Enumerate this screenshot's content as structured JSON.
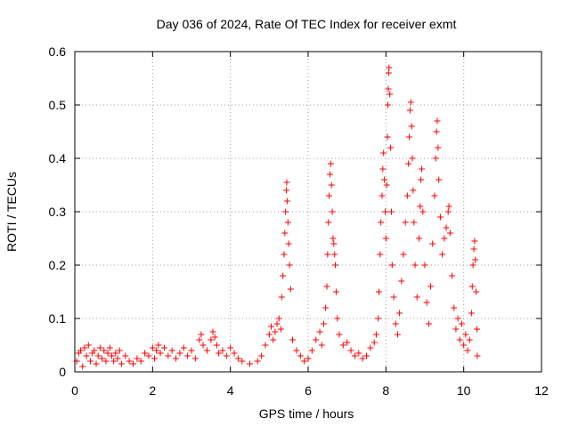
{
  "chart_data": {
    "type": "scatter",
    "title": "Day 036 of 2024, Rate Of TEC Index for receiver exmt",
    "xlabel": "GPS time / hours",
    "ylabel": "ROTI / TECUs",
    "xlim": [
      0,
      12
    ],
    "ylim": [
      0,
      0.6
    ],
    "xticks": [
      0,
      2,
      4,
      6,
      8,
      10,
      12
    ],
    "xtick_labels": [
      "0",
      "2",
      "4",
      "6",
      "8",
      "10",
      "12"
    ],
    "yticks": [
      0,
      0.1,
      0.2,
      0.3,
      0.4,
      0.5,
      0.6
    ],
    "ytick_labels": [
      "0",
      "0.1",
      "0.2",
      "0.3",
      "0.4",
      "0.5",
      "0.6"
    ],
    "grid": true,
    "marker": "+",
    "series_color": "#ff0000",
    "series": [
      {
        "name": "ROTI",
        "points": [
          [
            0.05,
            0.02
          ],
          [
            0.1,
            0.035
          ],
          [
            0.15,
            0.04
          ],
          [
            0.2,
            0.01
          ],
          [
            0.25,
            0.045
          ],
          [
            0.3,
            0.03
          ],
          [
            0.35,
            0.05
          ],
          [
            0.4,
            0.02
          ],
          [
            0.45,
            0.035
          ],
          [
            0.5,
            0.04
          ],
          [
            0.55,
            0.015
          ],
          [
            0.6,
            0.03
          ],
          [
            0.65,
            0.045
          ],
          [
            0.7,
            0.025
          ],
          [
            0.75,
            0.04
          ],
          [
            0.8,
            0.02
          ],
          [
            0.85,
            0.035
          ],
          [
            0.9,
            0.045
          ],
          [
            0.95,
            0.03
          ],
          [
            1.0,
            0.02
          ],
          [
            1.05,
            0.035
          ],
          [
            1.1,
            0.025
          ],
          [
            1.15,
            0.04
          ],
          [
            1.2,
            0.015
          ],
          [
            1.3,
            0.03
          ],
          [
            1.4,
            0.02
          ],
          [
            1.5,
            0.015
          ],
          [
            1.6,
            0.025
          ],
          [
            1.7,
            0.02
          ],
          [
            1.8,
            0.035
          ],
          [
            1.9,
            0.03
          ],
          [
            2.0,
            0.045
          ],
          [
            2.05,
            0.025
          ],
          [
            2.1,
            0.04
          ],
          [
            2.15,
            0.05
          ],
          [
            2.2,
            0.035
          ],
          [
            2.3,
            0.045
          ],
          [
            2.4,
            0.03
          ],
          [
            2.5,
            0.04
          ],
          [
            2.6,
            0.025
          ],
          [
            2.7,
            0.035
          ],
          [
            2.8,
            0.045
          ],
          [
            2.9,
            0.03
          ],
          [
            3.0,
            0.04
          ],
          [
            3.1,
            0.025
          ],
          [
            3.2,
            0.06
          ],
          [
            3.25,
            0.07
          ],
          [
            3.3,
            0.05
          ],
          [
            3.4,
            0.04
          ],
          [
            3.5,
            0.06
          ],
          [
            3.55,
            0.075
          ],
          [
            3.6,
            0.065
          ],
          [
            3.65,
            0.05
          ],
          [
            3.7,
            0.035
          ],
          [
            3.8,
            0.04
          ],
          [
            3.9,
            0.03
          ],
          [
            4.0,
            0.045
          ],
          [
            4.1,
            0.035
          ],
          [
            4.2,
            0.025
          ],
          [
            4.3,
            0.02
          ],
          [
            4.5,
            0.015
          ],
          [
            4.7,
            0.02
          ],
          [
            4.8,
            0.03
          ],
          [
            4.9,
            0.05
          ],
          [
            5.0,
            0.07
          ],
          [
            5.05,
            0.085
          ],
          [
            5.1,
            0.06
          ],
          [
            5.15,
            0.075
          ],
          [
            5.2,
            0.09
          ],
          [
            5.25,
            0.1
          ],
          [
            5.3,
            0.08
          ],
          [
            5.32,
            0.14
          ],
          [
            5.35,
            0.18
          ],
          [
            5.38,
            0.22
          ],
          [
            5.4,
            0.26
          ],
          [
            5.42,
            0.3
          ],
          [
            5.44,
            0.34
          ],
          [
            5.45,
            0.355
          ],
          [
            5.46,
            0.32
          ],
          [
            5.48,
            0.28
          ],
          [
            5.5,
            0.24
          ],
          [
            5.52,
            0.2
          ],
          [
            5.55,
            0.155
          ],
          [
            5.6,
            0.06
          ],
          [
            5.7,
            0.04
          ],
          [
            5.8,
            0.03
          ],
          [
            5.9,
            0.02
          ],
          [
            6.0,
            0.025
          ],
          [
            6.1,
            0.04
          ],
          [
            6.2,
            0.06
          ],
          [
            6.3,
            0.075
          ],
          [
            6.35,
            0.05
          ],
          [
            6.4,
            0.09
          ],
          [
            6.45,
            0.12
          ],
          [
            6.48,
            0.16
          ],
          [
            6.5,
            0.22
          ],
          [
            6.52,
            0.28
          ],
          [
            6.54,
            0.33
          ],
          [
            6.56,
            0.37
          ],
          [
            6.58,
            0.39
          ],
          [
            6.6,
            0.35
          ],
          [
            6.62,
            0.3
          ],
          [
            6.64,
            0.25
          ],
          [
            6.66,
            0.24
          ],
          [
            6.68,
            0.22
          ],
          [
            6.7,
            0.2
          ],
          [
            6.72,
            0.15
          ],
          [
            6.75,
            0.1
          ],
          [
            6.8,
            0.07
          ],
          [
            6.9,
            0.05
          ],
          [
            7.0,
            0.055
          ],
          [
            7.1,
            0.04
          ],
          [
            7.2,
            0.03
          ],
          [
            7.3,
            0.035
          ],
          [
            7.4,
            0.025
          ],
          [
            7.5,
            0.03
          ],
          [
            7.6,
            0.045
          ],
          [
            7.7,
            0.055
          ],
          [
            7.75,
            0.07
          ],
          [
            7.8,
            0.1
          ],
          [
            7.82,
            0.15
          ],
          [
            7.85,
            0.22
          ],
          [
            7.87,
            0.28
          ],
          [
            7.9,
            0.33
          ],
          [
            7.92,
            0.38
          ],
          [
            7.94,
            0.41
          ],
          [
            7.96,
            0.36
          ],
          [
            7.98,
            0.3
          ],
          [
            8.0,
            0.25
          ],
          [
            8.02,
            0.35
          ],
          [
            8.04,
            0.44
          ],
          [
            8.05,
            0.5
          ],
          [
            8.06,
            0.53
          ],
          [
            8.07,
            0.56
          ],
          [
            8.08,
            0.57
          ],
          [
            8.1,
            0.52
          ],
          [
            8.12,
            0.42
          ],
          [
            8.14,
            0.3
          ],
          [
            8.16,
            0.2
          ],
          [
            8.2,
            0.14
          ],
          [
            8.25,
            0.09
          ],
          [
            8.3,
            0.07
          ],
          [
            8.35,
            0.11
          ],
          [
            8.4,
            0.17
          ],
          [
            8.45,
            0.22
          ],
          [
            8.5,
            0.28
          ],
          [
            8.55,
            0.33
          ],
          [
            8.58,
            0.39
          ],
          [
            8.6,
            0.44
          ],
          [
            8.62,
            0.49
          ],
          [
            8.64,
            0.505
          ],
          [
            8.66,
            0.46
          ],
          [
            8.68,
            0.4
          ],
          [
            8.7,
            0.34
          ],
          [
            8.72,
            0.28
          ],
          [
            8.75,
            0.2
          ],
          [
            8.8,
            0.14
          ],
          [
            8.85,
            0.25
          ],
          [
            8.88,
            0.31
          ],
          [
            8.9,
            0.36
          ],
          [
            8.92,
            0.38
          ],
          [
            8.95,
            0.3
          ],
          [
            9.0,
            0.2
          ],
          [
            9.05,
            0.13
          ],
          [
            9.1,
            0.09
          ],
          [
            9.15,
            0.16
          ],
          [
            9.2,
            0.24
          ],
          [
            9.25,
            0.33
          ],
          [
            9.28,
            0.4
          ],
          [
            9.3,
            0.45
          ],
          [
            9.32,
            0.47
          ],
          [
            9.34,
            0.42
          ],
          [
            9.36,
            0.36
          ],
          [
            9.4,
            0.29
          ],
          [
            9.45,
            0.22
          ],
          [
            9.5,
            0.25
          ],
          [
            9.55,
            0.27
          ],
          [
            9.6,
            0.3
          ],
          [
            9.62,
            0.31
          ],
          [
            9.65,
            0.26
          ],
          [
            9.7,
            0.18
          ],
          [
            9.75,
            0.12
          ],
          [
            9.8,
            0.08
          ],
          [
            9.85,
            0.1
          ],
          [
            9.9,
            0.06
          ],
          [
            9.95,
            0.09
          ],
          [
            10.0,
            0.05
          ],
          [
            10.05,
            0.07
          ],
          [
            10.1,
            0.04
          ],
          [
            10.15,
            0.06
          ],
          [
            10.2,
            0.11
          ],
          [
            10.22,
            0.16
          ],
          [
            10.24,
            0.2
          ],
          [
            10.26,
            0.23
          ],
          [
            10.28,
            0.245
          ],
          [
            10.3,
            0.21
          ],
          [
            10.32,
            0.15
          ],
          [
            10.34,
            0.08
          ],
          [
            10.35,
            0.03
          ]
        ]
      }
    ]
  }
}
